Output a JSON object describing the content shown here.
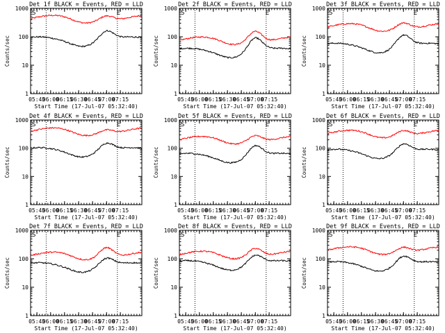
{
  "chart_data": [
    {
      "type": "line",
      "title": "Det 1f BLACK = Events, RED = LLD",
      "ylabel": "Counts/sec",
      "xlabel": "Start Time (17-Jul-07 05:32:40)",
      "x_ticks": [
        "05:45",
        "06:00",
        "06:15",
        "06:30",
        "06:45",
        "07:00",
        "07:15"
      ],
      "y_ticks": [
        "1",
        "10",
        "100",
        "1000"
      ],
      "ylim": [
        1,
        1000
      ],
      "y_scale": "log",
      "markers": [
        "S",
        "E"
      ],
      "series": [
        {
          "color": "#ff0000",
          "baseline": 430,
          "peak": 700
        },
        {
          "color": "#000000",
          "baseline": 75,
          "peak": 170
        }
      ]
    },
    {
      "type": "line",
      "title": "Det 2f BLACK = Events, RED = LLD",
      "ylabel": "Counts/sec",
      "xlabel": "Start Time (17-Jul-07 05:32:40)",
      "x_ticks": [
        "05:45",
        "06:00",
        "06:15",
        "06:30",
        "06:45",
        "07:00",
        "07:15"
      ],
      "y_ticks": [
        "1",
        "10",
        "100",
        "1000"
      ],
      "ylim": [
        1,
        1000
      ],
      "y_scale": "log",
      "markers": [
        "S",
        "E"
      ],
      "series": [
        {
          "color": "#ff0000",
          "baseline": 75,
          "peak": 200
        },
        {
          "color": "#000000",
          "baseline": 30,
          "peak": 95
        }
      ]
    },
    {
      "type": "line",
      "title": "Det 3f BLACK = Events, RED = LLD",
      "ylabel": "Counts/sec",
      "xlabel": "Start Time (17-Jul-07 05:32:40)",
      "x_ticks": [
        "05:45",
        "06:00",
        "06:15",
        "06:30",
        "06:45",
        "07:00",
        "07:15"
      ],
      "y_ticks": [
        "1",
        "10",
        "100",
        "1000"
      ],
      "ylim": [
        1,
        1000
      ],
      "y_scale": "log",
      "markers": [
        "S",
        "E"
      ],
      "series": [
        {
          "color": "#ff0000",
          "baseline": 220,
          "peak": 400
        },
        {
          "color": "#000000",
          "baseline": 45,
          "peak": 120
        }
      ]
    },
    {
      "type": "line",
      "title": "Det 4f BLACK = Events, RED = LLD",
      "ylabel": "Counts/sec",
      "xlabel": "Start Time (17-Jul-07 05:32:40)",
      "x_ticks": [
        "05:45",
        "06:00",
        "06:15",
        "06:30",
        "06:45",
        "07:00",
        "07:15"
      ],
      "y_ticks": [
        "1",
        "10",
        "100",
        "1000"
      ],
      "ylim": [
        1,
        1000
      ],
      "y_scale": "log",
      "markers": [
        "S",
        "E"
      ],
      "series": [
        {
          "color": "#ff0000",
          "baseline": 400,
          "peak": 580
        },
        {
          "color": "#000000",
          "baseline": 80,
          "peak": 160
        }
      ]
    },
    {
      "type": "line",
      "title": "Det 5f BLACK = Events, RED = LLD",
      "ylabel": "Counts/sec",
      "xlabel": "Start Time (17-Jul-07 05:32:40)",
      "x_ticks": [
        "05:45",
        "06:00",
        "06:15",
        "06:30",
        "06:45",
        "07:00",
        "07:15"
      ],
      "y_ticks": [
        "1",
        "10",
        "100",
        "1000"
      ],
      "ylim": [
        1,
        1000
      ],
      "y_scale": "log",
      "markers": [
        "S",
        "E"
      ],
      "series": [
        {
          "color": "#ff0000",
          "baseline": 200,
          "peak": 360
        },
        {
          "color": "#000000",
          "baseline": 50,
          "peak": 130
        }
      ]
    },
    {
      "type": "line",
      "title": "Det 6f BLACK = Events, RED = LLD",
      "ylabel": "Counts/sec",
      "xlabel": "Start Time (17-Jul-07 05:32:40)",
      "x_ticks": [
        "05:45",
        "06:00",
        "06:15",
        "06:30",
        "06:45",
        "07:00",
        "07:15"
      ],
      "y_ticks": [
        "1",
        "10",
        "100",
        "1000"
      ],
      "ylim": [
        1,
        1000
      ],
      "y_scale": "log",
      "markers": [
        "S",
        "E"
      ],
      "series": [
        {
          "color": "#ff0000",
          "baseline": 330,
          "peak": 550
        },
        {
          "color": "#000000",
          "baseline": 70,
          "peak": 150
        }
      ]
    },
    {
      "type": "line",
      "title": "Det 7f BLACK = Events, RED = LLD",
      "ylabel": "Counts/sec",
      "xlabel": "Start Time (17-Jul-07 05:32:40)",
      "x_ticks": [
        "05:45",
        "06:00",
        "06:15",
        "06:30",
        "06:45",
        "07:00",
        "07:15"
      ],
      "y_ticks": [
        "1",
        "10",
        "100",
        "1000"
      ],
      "ylim": [
        1,
        1000
      ],
      "y_scale": "log",
      "markers": [
        "S",
        "E"
      ],
      "series": [
        {
          "color": "#ff0000",
          "baseline": 130,
          "peak": 320
        },
        {
          "color": "#000000",
          "baseline": 55,
          "peak": 110
        }
      ]
    },
    {
      "type": "line",
      "title": "Det 8f BLACK = Events, RED = LLD",
      "ylabel": "Counts/sec",
      "xlabel": "Start Time (17-Jul-07 05:32:40)",
      "x_ticks": [
        "05:45",
        "06:00",
        "06:15",
        "06:30",
        "06:45",
        "07:00",
        "07:15"
      ],
      "y_ticks": [
        "1",
        "10",
        "100",
        "1000"
      ],
      "ylim": [
        1,
        1000
      ],
      "y_scale": "log",
      "markers": [
        "S",
        "E"
      ],
      "series": [
        {
          "color": "#ff0000",
          "baseline": 140,
          "peak": 300
        },
        {
          "color": "#000000",
          "baseline": 65,
          "peak": 140
        }
      ]
    },
    {
      "type": "line",
      "title": "Det 9f BLACK = Events, RED = LLD",
      "ylabel": "Counts/sec",
      "xlabel": "Start Time (17-Jul-07 05:32:40)",
      "x_ticks": [
        "05:45",
        "06:00",
        "06:15",
        "06:30",
        "06:45",
        "07:00",
        "07:15"
      ],
      "y_ticks": [
        "1",
        "10",
        "100",
        "1000"
      ],
      "ylim": [
        1,
        1000
      ],
      "y_scale": "log",
      "markers": [
        "S",
        "E"
      ],
      "series": [
        {
          "color": "#ff0000",
          "baseline": 200,
          "peak": 330
        },
        {
          "color": "#000000",
          "baseline": 60,
          "peak": 130
        }
      ]
    }
  ]
}
